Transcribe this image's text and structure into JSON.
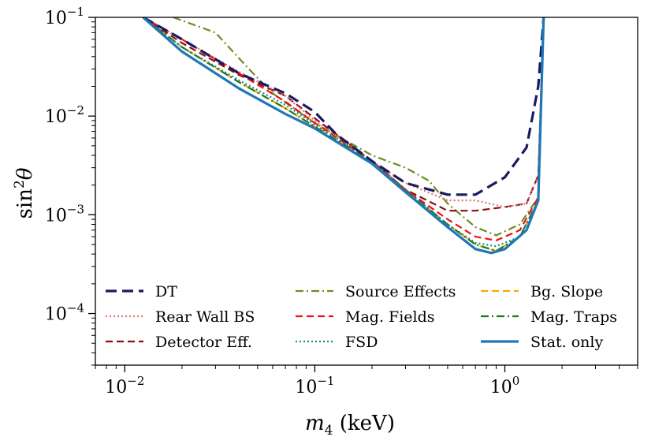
{
  "chart_data": {
    "type": "line",
    "xlabel": "m_4 (keV)",
    "ylabel": "sin^2 θ",
    "xscale": "log",
    "yscale": "log",
    "xlim": [
      0.007,
      5.0
    ],
    "ylim": [
      3e-05,
      0.1
    ],
    "x_tick_labels": [
      {
        "value": 0.01,
        "base": "10",
        "exp": "−2"
      },
      {
        "value": 0.1,
        "base": "10",
        "exp": "−1"
      },
      {
        "value": 1.0,
        "base": "10",
        "exp": "0"
      }
    ],
    "y_tick_labels": [
      {
        "value": 0.1,
        "base": "10",
        "exp": "−1"
      },
      {
        "value": 0.01,
        "base": "10",
        "exp": "−2"
      },
      {
        "value": 0.001,
        "base": "10",
        "exp": "−3"
      },
      {
        "value": 0.0001,
        "base": "10",
        "exp": "−4"
      }
    ],
    "grid": false,
    "legend": {
      "placement": "lower-left",
      "columns": 3
    },
    "series": [
      {
        "name": "DT",
        "color": "#1a1a60",
        "style": "dashed-thick",
        "points": [
          [
            0.0125,
            0.1
          ],
          [
            0.02,
            0.06
          ],
          [
            0.04,
            0.027
          ],
          [
            0.07,
            0.017
          ],
          [
            0.1,
            0.011
          ],
          [
            0.13,
            0.0065
          ],
          [
            0.2,
            0.0035
          ],
          [
            0.3,
            0.0021
          ],
          [
            0.5,
            0.0016
          ],
          [
            0.7,
            0.0016
          ],
          [
            1.0,
            0.0024
          ],
          [
            1.3,
            0.0048
          ],
          [
            1.5,
            0.02
          ],
          [
            1.6,
            0.1
          ]
        ]
      },
      {
        "name": "Rear Wall BS",
        "color": "#e07070",
        "style": "dotted",
        "points": [
          [
            0.0125,
            0.1
          ],
          [
            0.02,
            0.06
          ],
          [
            0.04,
            0.028
          ],
          [
            0.07,
            0.016
          ],
          [
            0.1,
            0.009
          ],
          [
            0.2,
            0.0035
          ],
          [
            0.3,
            0.0021
          ],
          [
            0.5,
            0.0014
          ],
          [
            0.7,
            0.0014
          ],
          [
            1.0,
            0.0012
          ],
          [
            1.3,
            0.0013
          ],
          [
            1.5,
            0.0025
          ],
          [
            1.6,
            0.1
          ]
        ]
      },
      {
        "name": "Detector Eff.",
        "color": "#8b0d0d",
        "style": "dashed",
        "points": [
          [
            0.0125,
            0.1
          ],
          [
            0.02,
            0.055
          ],
          [
            0.04,
            0.026
          ],
          [
            0.07,
            0.016
          ],
          [
            0.1,
            0.0095
          ],
          [
            0.2,
            0.0035
          ],
          [
            0.3,
            0.0018
          ],
          [
            0.5,
            0.0011
          ],
          [
            0.7,
            0.0011
          ],
          [
            1.0,
            0.0012
          ],
          [
            1.3,
            0.0013
          ],
          [
            1.5,
            0.0025
          ],
          [
            1.6,
            0.1
          ]
        ]
      },
      {
        "name": "Source Effects",
        "color": "#6b8e23",
        "style": "dashdot",
        "points": [
          [
            0.018,
            0.1
          ],
          [
            0.03,
            0.07
          ],
          [
            0.045,
            0.03
          ],
          [
            0.06,
            0.017
          ],
          [
            0.1,
            0.0085
          ],
          [
            0.2,
            0.004
          ],
          [
            0.3,
            0.003
          ],
          [
            0.4,
            0.0022
          ],
          [
            0.5,
            0.0013
          ],
          [
            0.7,
            0.00075
          ],
          [
            0.9,
            0.00062
          ],
          [
            1.2,
            0.0008
          ],
          [
            1.5,
            0.0015
          ],
          [
            1.6,
            0.1
          ]
        ]
      },
      {
        "name": "Mag. Fields",
        "color": "#ee1111",
        "style": "dashed",
        "points": [
          [
            0.0125,
            0.1
          ],
          [
            0.02,
            0.06
          ],
          [
            0.04,
            0.027
          ],
          [
            0.07,
            0.014
          ],
          [
            0.1,
            0.0085
          ],
          [
            0.2,
            0.0035
          ],
          [
            0.3,
            0.0018
          ],
          [
            0.5,
            0.0009
          ],
          [
            0.7,
            0.0006
          ],
          [
            0.9,
            0.00055
          ],
          [
            1.2,
            0.0007
          ],
          [
            1.5,
            0.0015
          ],
          [
            1.6,
            0.1
          ]
        ]
      },
      {
        "name": "FSD",
        "color": "#1a8a8a",
        "style": "dotted",
        "points": [
          [
            0.0125,
            0.1
          ],
          [
            0.02,
            0.05
          ],
          [
            0.04,
            0.023
          ],
          [
            0.07,
            0.013
          ],
          [
            0.1,
            0.0082
          ],
          [
            0.2,
            0.0035
          ],
          [
            0.3,
            0.0018
          ],
          [
            0.5,
            0.0008
          ],
          [
            0.7,
            0.00052
          ],
          [
            0.9,
            0.00048
          ],
          [
            1.2,
            0.0006
          ],
          [
            1.5,
            0.0014
          ],
          [
            1.6,
            0.1
          ]
        ]
      },
      {
        "name": "Bg. Slope",
        "color": "#ffa500",
        "style": "dashed",
        "points": [
          [
            0.0125,
            0.1
          ],
          [
            0.02,
            0.05
          ],
          [
            0.04,
            0.022
          ],
          [
            0.07,
            0.012
          ],
          [
            0.1,
            0.0078
          ],
          [
            0.2,
            0.0035
          ],
          [
            0.3,
            0.0018
          ],
          [
            0.5,
            0.0008
          ],
          [
            0.7,
            0.0005
          ],
          [
            0.9,
            0.00043
          ],
          [
            1.2,
            0.0006
          ],
          [
            1.5,
            0.0014
          ],
          [
            1.6,
            0.1
          ]
        ]
      },
      {
        "name": "Mag. Traps",
        "color": "#1a7a1a",
        "style": "dashdot",
        "points": [
          [
            0.0125,
            0.1
          ],
          [
            0.02,
            0.05
          ],
          [
            0.04,
            0.022
          ],
          [
            0.07,
            0.012
          ],
          [
            0.1,
            0.0078
          ],
          [
            0.2,
            0.0035
          ],
          [
            0.3,
            0.0018
          ],
          [
            0.5,
            0.0008
          ],
          [
            0.7,
            0.0005
          ],
          [
            0.9,
            0.00043
          ],
          [
            1.2,
            0.0006
          ],
          [
            1.5,
            0.0014
          ],
          [
            1.6,
            0.1
          ]
        ]
      },
      {
        "name": "Stat. only",
        "color": "#1f77b4",
        "style": "solid",
        "points": [
          [
            0.0125,
            0.1
          ],
          [
            0.02,
            0.045
          ],
          [
            0.04,
            0.019
          ],
          [
            0.07,
            0.0105
          ],
          [
            0.1,
            0.0075
          ],
          [
            0.2,
            0.0033
          ],
          [
            0.3,
            0.0017
          ],
          [
            0.5,
            0.00075
          ],
          [
            0.7,
            0.00045
          ],
          [
            0.85,
            0.00041
          ],
          [
            1.0,
            0.00045
          ],
          [
            1.3,
            0.0007
          ],
          [
            1.5,
            0.0014
          ],
          [
            1.6,
            0.1
          ]
        ]
      }
    ]
  }
}
